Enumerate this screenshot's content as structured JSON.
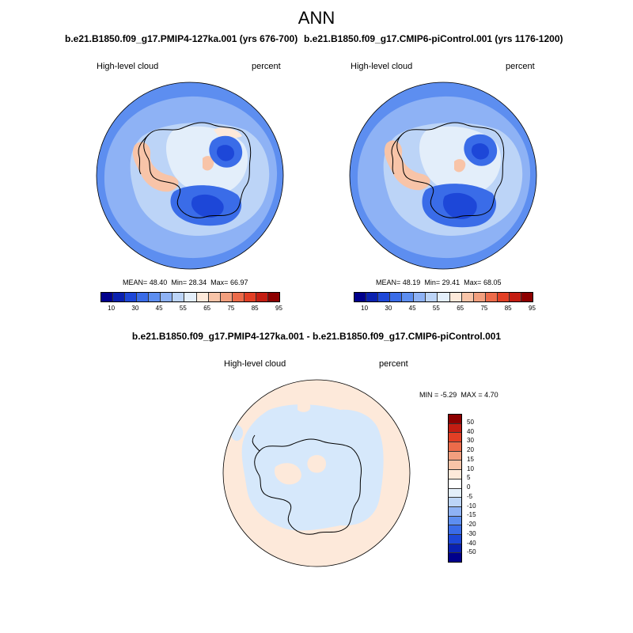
{
  "main_title": "ANN",
  "panels": [
    {
      "case_title": "b.e21.B1850.f09_g17.PMIP4-127ka.001 (yrs 676-700)",
      "variable": "High-level cloud",
      "units": "percent",
      "mean_label": "MEAN=",
      "mean": "48.40",
      "min_label": "Min=",
      "min": "28.34",
      "max_label": "Max=",
      "max": "66.97"
    },
    {
      "case_title": "b.e21.B1850.f09_g17.CMIP6-piControl.001 (yrs 1176-1200)",
      "variable": "High-level cloud",
      "units": "percent",
      "mean_label": "MEAN=",
      "mean": "48.19",
      "min_label": "Min=",
      "min": "29.41",
      "max_label": "Max=",
      "max": "68.05"
    }
  ],
  "diff": {
    "title": "b.e21.B1850.f09_g17.PMIP4-127ka.001 - b.e21.B1850.f09_g17.CMIP6-piControl.001",
    "variable": "High-level cloud",
    "units": "percent",
    "min_label": "MIN =",
    "min": "-5.29",
    "max_label": "MAX =",
    "max": "4.70"
  },
  "colorbar": {
    "colors": [
      "#00008c",
      "#0a21b0",
      "#1d47d8",
      "#3a6ce8",
      "#5d8ef0",
      "#8eb2f5",
      "#bcd4f7",
      "#e3eefa",
      "#fde9da",
      "#f8c4a8",
      "#f29f7e",
      "#ec6b4a",
      "#e23f25",
      "#c41d12",
      "#8d0000"
    ],
    "ticks": [
      "10",
      "30",
      "45",
      "55",
      "65",
      "75",
      "85",
      "95"
    ]
  },
  "diff_colorbar": {
    "colors": [
      "#8d0000",
      "#c41d12",
      "#e23f25",
      "#ec6b4a",
      "#f29f7e",
      "#f8c4a8",
      "#fde9da",
      "#ffffff",
      "#e3eefa",
      "#bcd4f7",
      "#8eb2f5",
      "#5d8ef0",
      "#3a6ce8",
      "#1d47d8",
      "#0a21b0",
      "#00008c"
    ],
    "ticks": [
      "50",
      "40",
      "30",
      "20",
      "15",
      "10",
      "5",
      "0",
      "-5",
      "-10",
      "-15",
      "-20",
      "-30",
      "-40",
      "-50"
    ]
  },
  "map_colors": {
    "ocean_band": "#8eb2f5",
    "outer_band": "#5d8ef0",
    "interior_light": "#bcd4f7",
    "interior_pale": "#e3eefa",
    "warm_patch": "#f8c4a8",
    "warm_pale": "#fde9da",
    "deep_blue": "#1d47d8",
    "mid_blue": "#3a6ce8",
    "diff_positive": "#fde9da",
    "diff_negative": "#d6e8fb"
  }
}
